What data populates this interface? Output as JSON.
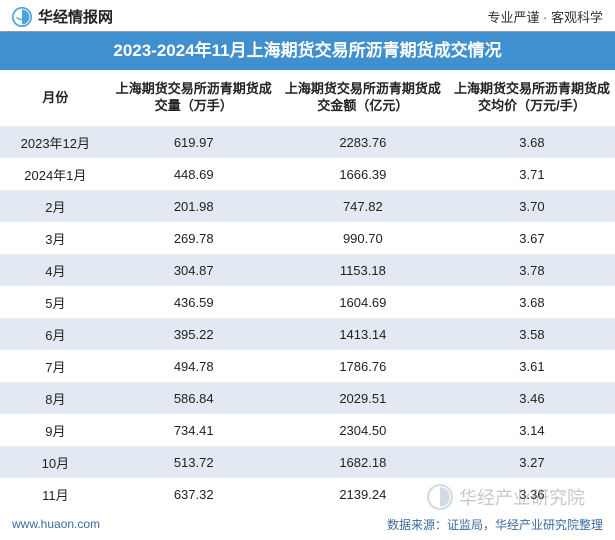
{
  "header": {
    "logo_text": "华经情报网",
    "slogan": "专业严谨 · 客观科学"
  },
  "title": "2023-2024年11月上海期货交易所沥青期货成交情况",
  "table": {
    "columns": [
      "月份",
      "上海期货交易所沥青期货成交量（万手）",
      "上海期货交易所沥青期货成交金额（亿元）",
      "上海期货交易所沥青期货成交均价（万元/手）"
    ],
    "col_widths": [
      "18%",
      "27%",
      "28%",
      "27%"
    ],
    "rows": [
      [
        "2023年12月",
        "619.97",
        "2283.76",
        "3.68"
      ],
      [
        "2024年1月",
        "448.69",
        "1666.39",
        "3.71"
      ],
      [
        "2月",
        "201.98",
        "747.82",
        "3.70"
      ],
      [
        "3月",
        "269.78",
        "990.70",
        "3.67"
      ],
      [
        "4月",
        "304.87",
        "1153.18",
        "3.78"
      ],
      [
        "5月",
        "436.59",
        "1604.69",
        "3.68"
      ],
      [
        "6月",
        "395.22",
        "1413.14",
        "3.58"
      ],
      [
        "7月",
        "494.78",
        "1786.76",
        "3.61"
      ],
      [
        "8月",
        "586.84",
        "2029.51",
        "3.46"
      ],
      [
        "9月",
        "734.41",
        "2304.50",
        "3.14"
      ],
      [
        "10月",
        "513.72",
        "1682.18",
        "3.27"
      ],
      [
        "11月",
        "637.32",
        "2139.24",
        "3.36"
      ]
    ],
    "row_colors": {
      "odd": "#e2e9f2",
      "even": "#ffffff"
    },
    "header_font_size": 13,
    "cell_font_size": 13
  },
  "footer": {
    "left": "www.huaon.com",
    "right": "数据来源：证监局，华经产业研究院整理"
  },
  "watermark": {
    "text": "华经产业研究院"
  },
  "colors": {
    "title_bg": "#408fce",
    "title_fg": "#ffffff",
    "footer_color": "#3a6aa0",
    "border": "#999999"
  }
}
